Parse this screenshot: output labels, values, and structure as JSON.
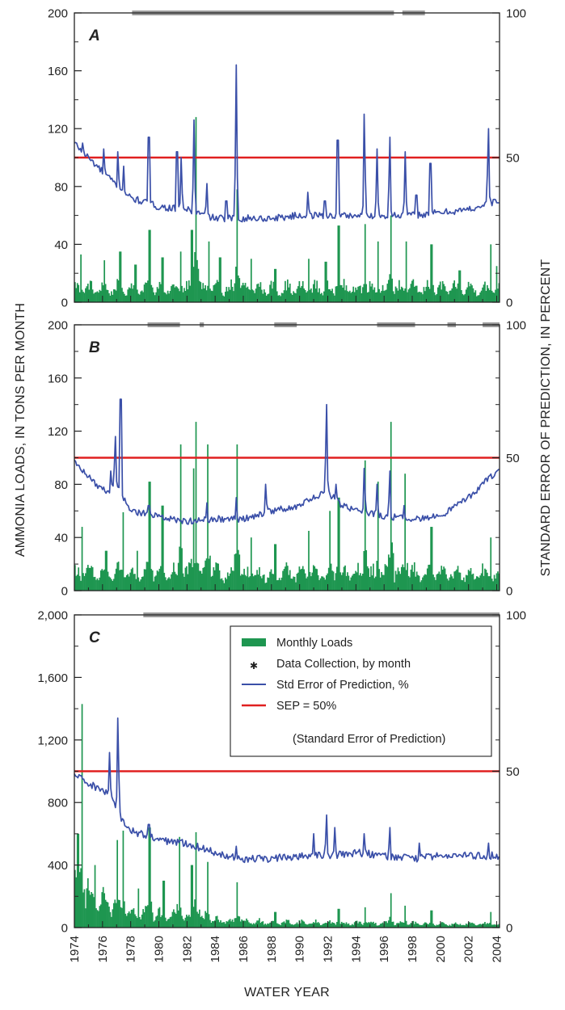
{
  "figure": {
    "ylabel_left": "AMMONIA LOADS, IN TONS PER MONTH",
    "ylabel_right": "STANDARD ERROR OF PREDICTION, IN PERCENT",
    "xlabel": "WATER YEAR",
    "xticks": [
      "1974",
      "1976",
      "1978",
      "1980",
      "1982",
      "1984",
      "1986",
      "1988",
      "1990",
      "1992",
      "1994",
      "1996",
      "1998",
      "2000",
      "2002",
      "2004"
    ],
    "colors": {
      "loads": "#1e9650",
      "sep_line": "#3a4fa8",
      "threshold": "#e02020",
      "collection": "#9a9a9a"
    }
  },
  "legend": {
    "items": [
      {
        "key": "loads",
        "label": "Monthly Loads"
      },
      {
        "key": "collection",
        "label": "Data Collection, by month"
      },
      {
        "key": "sep",
        "label": "Std Error of Prediction, %"
      },
      {
        "key": "threshold",
        "label": "SEP = 50%"
      }
    ],
    "threshold_note": "(Standard Error of Prediction)"
  },
  "chart_data": [
    {
      "panel": "A",
      "type": "bar+line",
      "x_range": [
        1974,
        2004.2
      ],
      "left_axis": {
        "ylim": [
          0,
          200
        ],
        "ticks": [
          "0",
          "40",
          "80",
          "120",
          "160",
          "200"
        ]
      },
      "right_axis": {
        "ylim": [
          0,
          100
        ],
        "ticks": [
          "0",
          "50",
          "100"
        ]
      },
      "threshold_percent": 50,
      "data_collection_periods": [
        [
          1978.1,
          1996.7
        ],
        [
          1997.3,
          1998.9
        ]
      ],
      "load_baseline": 11,
      "load_peaks": [
        [
          1974.4,
          33
        ],
        [
          1976.1,
          29
        ],
        [
          1977.2,
          35
        ],
        [
          1978.3,
          26
        ],
        [
          1979.3,
          50
        ],
        [
          1980.2,
          31
        ],
        [
          1981.5,
          35
        ],
        [
          1982.3,
          50
        ],
        [
          1982.6,
          128
        ],
        [
          1983.5,
          42
        ],
        [
          1984.3,
          31
        ],
        [
          1985.5,
          78
        ],
        [
          1986.5,
          30
        ],
        [
          1988.2,
          23
        ],
        [
          1990.6,
          30
        ],
        [
          1991.8,
          28
        ],
        [
          1992.7,
          53
        ],
        [
          1994.6,
          54
        ],
        [
          1995.5,
          42
        ],
        [
          1996.4,
          60
        ],
        [
          1997.5,
          42
        ],
        [
          1999.3,
          40
        ],
        [
          2001.3,
          22
        ],
        [
          2003.5,
          40
        ],
        [
          2003.9,
          25
        ]
      ],
      "sep_baseline": [
        [
          1974,
          55
        ],
        [
          1976,
          45
        ],
        [
          1978,
          36
        ],
        [
          1980,
          33
        ],
        [
          1982,
          32
        ],
        [
          1984,
          29
        ],
        [
          1986,
          29
        ],
        [
          1988,
          29
        ],
        [
          1990,
          30
        ],
        [
          1992,
          30
        ],
        [
          1994,
          30
        ],
        [
          1996,
          30
        ],
        [
          1998,
          30
        ],
        [
          2000,
          31
        ],
        [
          2002,
          32
        ],
        [
          2004,
          35
        ]
      ],
      "sep_spikes": [
        [
          1974.6,
          55
        ],
        [
          1976.1,
          53
        ],
        [
          1977.1,
          52
        ],
        [
          1977.5,
          47
        ],
        [
          1979.3,
          57
        ],
        [
          1981.3,
          52
        ],
        [
          1981.6,
          50
        ],
        [
          1982.5,
          63
        ],
        [
          1983.4,
          41
        ],
        [
          1984.8,
          35
        ],
        [
          1985.5,
          82
        ],
        [
          1990.6,
          38
        ],
        [
          1991.8,
          35
        ],
        [
          1992.7,
          56
        ],
        [
          1994.6,
          65
        ],
        [
          1995.5,
          53
        ],
        [
          1996.4,
          57
        ],
        [
          1997.5,
          52
        ],
        [
          1998.3,
          37
        ],
        [
          1999.3,
          48
        ],
        [
          2003.4,
          60
        ]
      ]
    },
    {
      "panel": "B",
      "type": "bar+line",
      "x_range": [
        1974,
        2004.2
      ],
      "left_axis": {
        "ylim": [
          0,
          200
        ],
        "ticks": [
          "0",
          "40",
          "80",
          "120",
          "160",
          "200"
        ]
      },
      "right_axis": {
        "ylim": [
          0,
          100
        ],
        "ticks": [
          "0",
          "50",
          "100"
        ]
      },
      "threshold_percent": 50,
      "data_collection_periods": [
        [
          1979.2,
          1981.5
        ],
        [
          1982.9,
          1983.2
        ],
        [
          1988.2,
          1989.8
        ],
        [
          1995.5,
          1998.2
        ],
        [
          2000.5,
          2001.1
        ],
        [
          2003.0,
          2004.2
        ]
      ],
      "load_baseline": 15,
      "load_peaks": [
        [
          1974.5,
          48
        ],
        [
          1976.2,
          30
        ],
        [
          1977.4,
          59
        ],
        [
          1978.4,
          30
        ],
        [
          1979.3,
          82
        ],
        [
          1980.2,
          64
        ],
        [
          1981.5,
          110
        ],
        [
          1982.4,
          92
        ],
        [
          1982.6,
          127
        ],
        [
          1983.4,
          110
        ],
        [
          1985.5,
          110
        ],
        [
          1986.5,
          40
        ],
        [
          1988.2,
          35
        ],
        [
          1990.6,
          45
        ],
        [
          1992.1,
          60
        ],
        [
          1992.7,
          70
        ],
        [
          1994.6,
          98
        ],
        [
          1995.5,
          82
        ],
        [
          1996.4,
          127
        ],
        [
          1997.4,
          88
        ],
        [
          1999.3,
          48
        ],
        [
          2003.5,
          40
        ]
      ],
      "sep_baseline": [
        [
          1974,
          49
        ],
        [
          1975.5,
          40
        ],
        [
          1976.3,
          37
        ],
        [
          1977,
          40
        ],
        [
          1977.5,
          35
        ],
        [
          1978,
          30
        ],
        [
          1980,
          28
        ],
        [
          1982,
          26
        ],
        [
          1984,
          27
        ],
        [
          1986,
          27
        ],
        [
          1988,
          30
        ],
        [
          1990,
          32
        ],
        [
          1991,
          35
        ],
        [
          1992,
          37
        ],
        [
          1993,
          32
        ],
        [
          1994,
          30
        ],
        [
          1996,
          28
        ],
        [
          1998,
          27
        ],
        [
          2000,
          28
        ],
        [
          2002,
          35
        ],
        [
          2004,
          45
        ]
      ],
      "sep_spikes": [
        [
          1976.6,
          45
        ],
        [
          1976.9,
          58
        ],
        [
          1977.3,
          72
        ],
        [
          1979.3,
          32
        ],
        [
          1983.4,
          33
        ],
        [
          1985.5,
          35
        ],
        [
          1987.6,
          40
        ],
        [
          1991.9,
          70
        ],
        [
          1992.6,
          40
        ],
        [
          1994.6,
          46
        ],
        [
          1995.5,
          40
        ],
        [
          1996.4,
          45
        ],
        [
          1997.4,
          32
        ]
      ]
    },
    {
      "panel": "C",
      "type": "bar+line",
      "x_range": [
        1974,
        2004.2
      ],
      "left_axis": {
        "ylim": [
          0,
          2000
        ],
        "ticks": [
          "0",
          "400",
          "800",
          "1,200",
          "1,600",
          "2,000"
        ]
      },
      "right_axis": {
        "ylim": [
          0,
          100
        ],
        "ticks": [
          "0",
          "50",
          "100"
        ]
      },
      "threshold_percent": 50,
      "data_collection_periods": [
        [
          1978.9,
          2004.2
        ]
      ],
      "load_baseline": [
        [
          1974,
          280
        ],
        [
          1976,
          180
        ],
        [
          1978,
          120
        ],
        [
          1980,
          90
        ],
        [
          1982,
          70
        ],
        [
          1984,
          55
        ],
        [
          1986,
          45
        ],
        [
          1988,
          40
        ],
        [
          1992,
          35
        ],
        [
          1996,
          30
        ],
        [
          2004,
          25
        ]
      ],
      "load_peaks": [
        [
          1974.2,
          600
        ],
        [
          1974.5,
          1430
        ],
        [
          1975.4,
          400
        ],
        [
          1976.1,
          220
        ],
        [
          1977.0,
          560
        ],
        [
          1977.4,
          620
        ],
        [
          1978.5,
          250
        ],
        [
          1979.3,
          640
        ],
        [
          1980.3,
          300
        ],
        [
          1981.4,
          580
        ],
        [
          1982.3,
          400
        ],
        [
          1982.6,
          610
        ],
        [
          1983.4,
          420
        ],
        [
          1985.5,
          290
        ],
        [
          1988.2,
          100
        ],
        [
          1992.7,
          120
        ],
        [
          1994.6,
          130
        ],
        [
          1996.4,
          220
        ],
        [
          1997.4,
          140
        ],
        [
          1999.3,
          110
        ],
        [
          2003.5,
          100
        ]
      ],
      "sep_baseline": [
        [
          1974,
          49
        ],
        [
          1975,
          46
        ],
        [
          1976,
          44
        ],
        [
          1976.5,
          42
        ],
        [
          1977.6,
          33
        ],
        [
          1978,
          31
        ],
        [
          1980,
          28
        ],
        [
          1982,
          27
        ],
        [
          1984,
          24
        ],
        [
          1986,
          22
        ],
        [
          1988,
          22
        ],
        [
          1990,
          23
        ],
        [
          1992,
          23
        ],
        [
          1994,
          24
        ],
        [
          1996,
          23
        ],
        [
          1998,
          22
        ],
        [
          2000,
          23
        ],
        [
          2002,
          23
        ],
        [
          2004,
          23
        ]
      ],
      "sep_spikes": [
        [
          1976.5,
          56
        ],
        [
          1977.1,
          67
        ],
        [
          1979.3,
          33
        ],
        [
          1985.5,
          26
        ],
        [
          1991.0,
          30
        ],
        [
          1991.9,
          36
        ],
        [
          1992.5,
          32
        ],
        [
          1994.6,
          30
        ],
        [
          1996.4,
          32
        ],
        [
          1998.5,
          27
        ],
        [
          2003.4,
          27
        ]
      ]
    }
  ]
}
